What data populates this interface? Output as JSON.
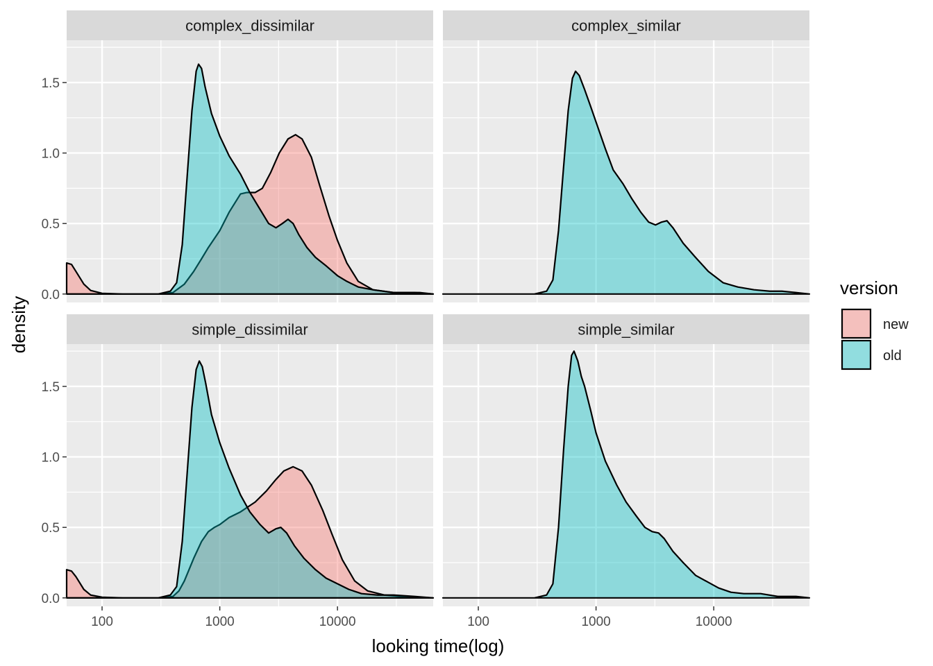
{
  "chart_data": {
    "type": "area",
    "xlabel": "looking time(log)",
    "ylabel": "density",
    "x_scale": "log10",
    "xlim": [
      50,
      65000
    ],
    "ylim": [
      -0.06,
      1.8
    ],
    "x_ticks": [
      100,
      1000,
      10000
    ],
    "x_tick_labels": [
      "100",
      "1000",
      "10000"
    ],
    "y_ticks": [
      0,
      0.5,
      1,
      1.5
    ],
    "y_tick_labels": [
      "0.0",
      "0.5",
      "1.0",
      "1.5"
    ],
    "grid": true,
    "legend": {
      "title": "version",
      "placement": "right",
      "entries": [
        {
          "label": "new",
          "color": "#F8766D"
        },
        {
          "label": "old",
          "color": "#00BFC4"
        }
      ]
    },
    "fill_opacity": 0.4,
    "panels": [
      {
        "title": "complex_dissimilar",
        "series": [
          {
            "name": "new",
            "points": [
              [
                50,
                0.22
              ],
              [
                55,
                0.21
              ],
              [
                60,
                0.16
              ],
              [
                70,
                0.07
              ],
              [
                80,
                0.025
              ],
              [
                100,
                0.005
              ],
              [
                150,
                0.0
              ],
              [
                300,
                0.0
              ],
              [
                400,
                0.01
              ],
              [
                500,
                0.07
              ],
              [
                600,
                0.16
              ],
              [
                700,
                0.25
              ],
              [
                800,
                0.33
              ],
              [
                1000,
                0.45
              ],
              [
                1200,
                0.58
              ],
              [
                1500,
                0.71
              ],
              [
                1700,
                0.72
              ],
              [
                2000,
                0.72
              ],
              [
                2300,
                0.75
              ],
              [
                2700,
                0.86
              ],
              [
                3200,
                1.0
              ],
              [
                3800,
                1.1
              ],
              [
                4400,
                1.13
              ],
              [
                5000,
                1.1
              ],
              [
                6000,
                0.97
              ],
              [
                7000,
                0.78
              ],
              [
                8500,
                0.55
              ],
              [
                10000,
                0.38
              ],
              [
                12000,
                0.22
              ],
              [
                15000,
                0.09
              ],
              [
                20000,
                0.03
              ],
              [
                30000,
                0.01
              ],
              [
                50000,
                0.01
              ],
              [
                65000,
                0.0
              ]
            ]
          },
          {
            "name": "old",
            "points": [
              [
                50,
                0.0
              ],
              [
                300,
                0.0
              ],
              [
                380,
                0.02
              ],
              [
                430,
                0.08
              ],
              [
                480,
                0.35
              ],
              [
                530,
                0.85
              ],
              [
                580,
                1.3
              ],
              [
                630,
                1.58
              ],
              [
                660,
                1.63
              ],
              [
                700,
                1.6
              ],
              [
                750,
                1.47
              ],
              [
                850,
                1.28
              ],
              [
                1000,
                1.12
              ],
              [
                1200,
                0.98
              ],
              [
                1500,
                0.85
              ],
              [
                1800,
                0.72
              ],
              [
                2200,
                0.6
              ],
              [
                2600,
                0.5
              ],
              [
                3000,
                0.47
              ],
              [
                3400,
                0.5
              ],
              [
                3800,
                0.53
              ],
              [
                4200,
                0.5
              ],
              [
                4700,
                0.42
              ],
              [
                5500,
                0.33
              ],
              [
                6500,
                0.26
              ],
              [
                8000,
                0.2
              ],
              [
                10000,
                0.13
              ],
              [
                12000,
                0.09
              ],
              [
                15000,
                0.05
              ],
              [
                20000,
                0.03
              ],
              [
                30000,
                0.01
              ],
              [
                45000,
                0.01
              ],
              [
                65000,
                0.0
              ]
            ]
          }
        ]
      },
      {
        "title": "complex_similar",
        "series": [
          {
            "name": "old",
            "points": [
              [
                50,
                0.0
              ],
              [
                300,
                0.0
              ],
              [
                380,
                0.02
              ],
              [
                430,
                0.1
              ],
              [
                480,
                0.45
              ],
              [
                530,
                0.9
              ],
              [
                580,
                1.3
              ],
              [
                630,
                1.53
              ],
              [
                670,
                1.58
              ],
              [
                720,
                1.55
              ],
              [
                800,
                1.45
              ],
              [
                900,
                1.33
              ],
              [
                1000,
                1.22
              ],
              [
                1200,
                1.03
              ],
              [
                1400,
                0.88
              ],
              [
                1700,
                0.78
              ],
              [
                2000,
                0.68
              ],
              [
                2400,
                0.58
              ],
              [
                2800,
                0.51
              ],
              [
                3200,
                0.49
              ],
              [
                3600,
                0.51
              ],
              [
                4000,
                0.52
              ],
              [
                4500,
                0.47
              ],
              [
                5500,
                0.36
              ],
              [
                7000,
                0.26
              ],
              [
                9000,
                0.16
              ],
              [
                12000,
                0.08
              ],
              [
                16000,
                0.05
              ],
              [
                22000,
                0.03
              ],
              [
                30000,
                0.02
              ],
              [
                38000,
                0.02
              ],
              [
                50000,
                0.01
              ],
              [
                65000,
                0.0
              ]
            ]
          }
        ]
      },
      {
        "title": "simple_dissimilar",
        "series": [
          {
            "name": "new",
            "points": [
              [
                50,
                0.2
              ],
              [
                55,
                0.19
              ],
              [
                60,
                0.15
              ],
              [
                70,
                0.06
              ],
              [
                80,
                0.02
              ],
              [
                100,
                0.005
              ],
              [
                150,
                0.0
              ],
              [
                300,
                0.0
              ],
              [
                400,
                0.01
              ],
              [
                450,
                0.05
              ],
              [
                500,
                0.12
              ],
              [
                600,
                0.28
              ],
              [
                700,
                0.4
              ],
              [
                800,
                0.47
              ],
              [
                900,
                0.5
              ],
              [
                1000,
                0.52
              ],
              [
                1200,
                0.57
              ],
              [
                1500,
                0.61
              ],
              [
                2000,
                0.68
              ],
              [
                2500,
                0.76
              ],
              [
                3000,
                0.84
              ],
              [
                3500,
                0.9
              ],
              [
                4200,
                0.93
              ],
              [
                5000,
                0.9
              ],
              [
                6000,
                0.8
              ],
              [
                7500,
                0.62
              ],
              [
                9000,
                0.45
              ],
              [
                11000,
                0.27
              ],
              [
                14000,
                0.12
              ],
              [
                18000,
                0.05
              ],
              [
                25000,
                0.02
              ],
              [
                35000,
                0.01
              ],
              [
                65000,
                0.0
              ]
            ]
          },
          {
            "name": "old",
            "points": [
              [
                50,
                0.0
              ],
              [
                300,
                0.0
              ],
              [
                380,
                0.02
              ],
              [
                430,
                0.08
              ],
              [
                480,
                0.4
              ],
              [
                530,
                0.9
              ],
              [
                580,
                1.35
              ],
              [
                630,
                1.62
              ],
              [
                670,
                1.68
              ],
              [
                710,
                1.64
              ],
              [
                760,
                1.52
              ],
              [
                850,
                1.3
              ],
              [
                1000,
                1.1
              ],
              [
                1200,
                0.92
              ],
              [
                1500,
                0.73
              ],
              [
                1800,
                0.61
              ],
              [
                2200,
                0.52
              ],
              [
                2600,
                0.46
              ],
              [
                3000,
                0.49
              ],
              [
                3300,
                0.5
              ],
              [
                3700,
                0.46
              ],
              [
                4300,
                0.37
              ],
              [
                5200,
                0.28
              ],
              [
                6500,
                0.2
              ],
              [
                8000,
                0.14
              ],
              [
                10000,
                0.1
              ],
              [
                12500,
                0.06
              ],
              [
                16000,
                0.03
              ],
              [
                22000,
                0.02
              ],
              [
                30000,
                0.02
              ],
              [
                45000,
                0.01
              ],
              [
                65000,
                0.0
              ]
            ]
          }
        ]
      },
      {
        "title": "simple_similar",
        "series": [
          {
            "name": "old",
            "points": [
              [
                50,
                0.0
              ],
              [
                300,
                0.0
              ],
              [
                380,
                0.02
              ],
              [
                430,
                0.1
              ],
              [
                480,
                0.5
              ],
              [
                530,
                1.05
              ],
              [
                580,
                1.5
              ],
              [
                620,
                1.72
              ],
              [
                650,
                1.75
              ],
              [
                700,
                1.68
              ],
              [
                750,
                1.57
              ],
              [
                800,
                1.5
              ],
              [
                900,
                1.33
              ],
              [
                1000,
                1.17
              ],
              [
                1200,
                0.97
              ],
              [
                1500,
                0.8
              ],
              [
                1800,
                0.68
              ],
              [
                2200,
                0.58
              ],
              [
                2600,
                0.5
              ],
              [
                3000,
                0.47
              ],
              [
                3400,
                0.46
              ],
              [
                3800,
                0.42
              ],
              [
                4500,
                0.33
              ],
              [
                5500,
                0.25
              ],
              [
                7000,
                0.16
              ],
              [
                9000,
                0.11
              ],
              [
                11000,
                0.07
              ],
              [
                14000,
                0.04
              ],
              [
                18000,
                0.03
              ],
              [
                25000,
                0.03
              ],
              [
                35000,
                0.01
              ],
              [
                50000,
                0.01
              ],
              [
                65000,
                0.0
              ]
            ]
          }
        ]
      }
    ]
  }
}
